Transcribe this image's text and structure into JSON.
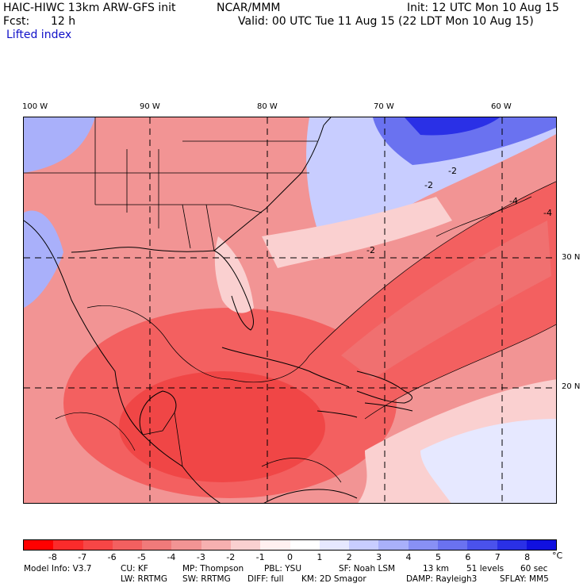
{
  "header": {
    "model": "HAIC-HIWC 13km ARW-GFS init",
    "org": "NCAR/MMM",
    "init": "Init: 12 UTC Mon 10 Aug 15",
    "fcst_label": "Fcst:",
    "fcst_value": "12 h",
    "valid": "Valid: 00 UTC Tue 11 Aug 15 (22 LDT Mon 10 Aug 15)",
    "field": "Lifted index"
  },
  "map": {
    "lon_labels": [
      "100 W",
      "90 W",
      "80 W",
      "70 W",
      "60 W"
    ],
    "lat_labels": [
      "30 N",
      "20 N"
    ],
    "contour_labels": [
      "-2",
      "-2",
      "-2",
      "-4",
      "-4"
    ]
  },
  "colorbar": {
    "ticks": [
      "-8",
      "-7",
      "-6",
      "-5",
      "-4",
      "-3",
      "-2",
      "-1",
      "0",
      "1",
      "2",
      "3",
      "4",
      "5",
      "6",
      "7",
      "8"
    ],
    "unit": "°C",
    "colors": [
      "#ff0000",
      "#fb2b2b",
      "#f74646",
      "#f36060",
      "#f07a7a",
      "#f29494",
      "#f6b0b0",
      "#fad0d0",
      "#fff0f0",
      "#ffffff",
      "#e6e8ff",
      "#c8cdff",
      "#a9b0fa",
      "#8890f5",
      "#6a72f0",
      "#4a52ec",
      "#2a30e6",
      "#1010e0"
    ]
  },
  "footer": {
    "line1": [
      "Model Info: V3.7",
      "CU: KF",
      "MP: Thompson",
      "PBL: YSU",
      "SF: Noah LSM",
      "13 km",
      "51 levels",
      "60 sec"
    ],
    "line2": [
      "LW: RRTMG",
      "SW: RRTMG",
      "DIFF: full",
      "KM: 2D Smagor",
      "DAMP: Rayleigh3",
      "SFLAY: MM5"
    ]
  }
}
